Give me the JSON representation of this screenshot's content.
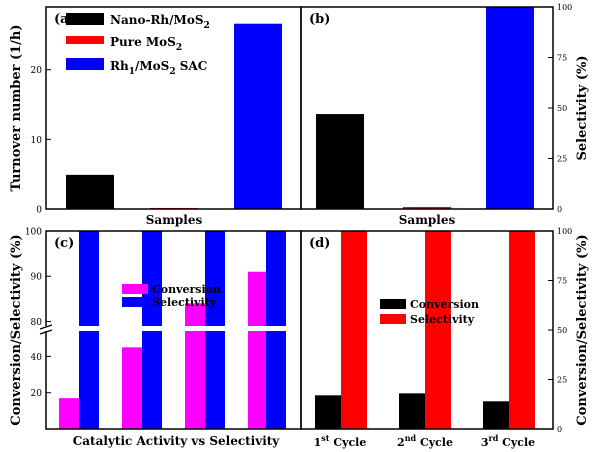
{
  "chart_data": [
    {
      "panel": "(a)",
      "type": "bar",
      "xlabel": "Samples",
      "ylabel": "Turnover number (1/h)",
      "ylim": [
        0,
        29
      ],
      "yticks": [
        "0",
        "10",
        "20"
      ],
      "ytick_values": [
        0,
        10,
        20
      ],
      "categories": [
        "Nano-Rh/MoS2",
        "Pure MoS2",
        "Rh1/MoS2 SAC"
      ],
      "values": [
        4.9,
        0.15,
        26.6
      ],
      "colors": [
        "#000000",
        "#ff0000",
        "#0000ff"
      ],
      "legend": {
        "placement": "top-left",
        "entries": [
          {
            "base": "Nano-Rh/MoS",
            "sub": "2",
            "tail": ""
          },
          {
            "base": "Pure MoS",
            "sub": "2",
            "tail": ""
          },
          {
            "base": "Rh",
            "sub": "1",
            "tail": "/MoS",
            "sub2": "2",
            "tail2": " SAC"
          }
        ]
      }
    },
    {
      "panel": "(b)",
      "type": "bar",
      "xlabel": "Samples",
      "ylabel": "Selectivity (%)",
      "ylim": [
        0,
        100
      ],
      "yticks": [
        "0",
        "25",
        "50",
        "75",
        "100"
      ],
      "ytick_values": [
        0,
        25,
        50,
        75,
        100
      ],
      "categories": [
        "Nano-Rh/MoS2",
        "Pure MoS2",
        "Rh1/MoS2 SAC"
      ],
      "values": [
        47,
        1,
        100
      ],
      "colors": [
        "#000000",
        "#ff0000",
        "#0000ff"
      ]
    },
    {
      "panel": "(c)",
      "type": "bar",
      "xlabel": "Catalytic Activity vs Selectivity",
      "ylabel": "Conversion/Selectivity (%)",
      "axis_break": {
        "lower": [
          0,
          54
        ],
        "upper": [
          79,
          100
        ]
      },
      "yticks": [
        "20",
        "40",
        "80",
        "90",
        "100"
      ],
      "ytick_values": [
        20,
        40,
        80,
        90,
        100
      ],
      "groups": 4,
      "series": [
        {
          "name": "Conversion",
          "color": "#ff00ff",
          "values": [
            17,
            45,
            84,
            91
          ]
        },
        {
          "name": "Selectivity",
          "color": "#0000ff",
          "values": [
            100,
            100,
            100,
            100
          ]
        }
      ],
      "legend": {
        "placement": "middle-left"
      }
    },
    {
      "panel": "(d)",
      "type": "bar",
      "xlabel": "",
      "ylabel": "Conversion/Selectivity (%)",
      "ylim": [
        0,
        100
      ],
      "yticks": [
        "0",
        "25",
        "50",
        "75",
        "100"
      ],
      "ytick_values": [
        0,
        25,
        50,
        75,
        100
      ],
      "categories": [
        {
          "num": "1",
          "sup": "st",
          "word": " Cycle"
        },
        {
          "num": "2",
          "sup": "nd",
          "word": " Cycle"
        },
        {
          "num": "3",
          "sup": "rd",
          "word": " Cycle"
        }
      ],
      "series": [
        {
          "name": "Conversion",
          "color": "#000000",
          "values": [
            17,
            18,
            14
          ]
        },
        {
          "name": "Selectivity",
          "color": "#ff0000",
          "values": [
            100,
            100,
            100
          ]
        }
      ],
      "legend": {
        "placement": "middle-left"
      }
    }
  ]
}
